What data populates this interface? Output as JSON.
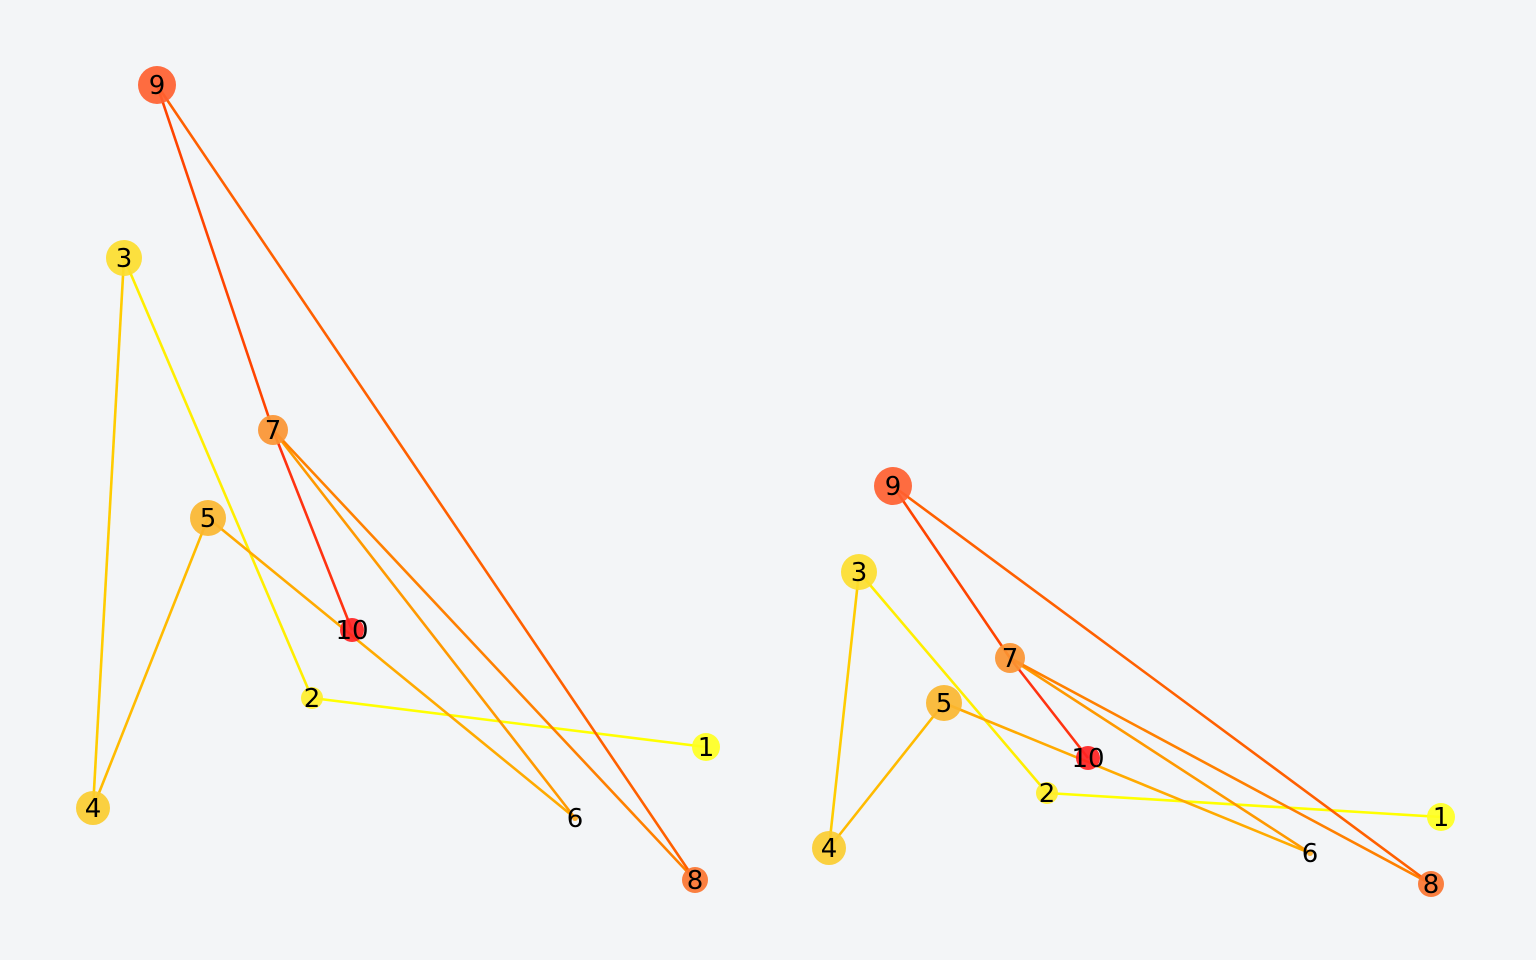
{
  "graphs": [
    {
      "nodes": [
        {
          "id": "1",
          "label": "1",
          "color": "#ffff22"
        },
        {
          "id": "2",
          "label": "2",
          "color": "#ffee2a"
        },
        {
          "id": "3",
          "label": "3",
          "color": "#fddd2e"
        },
        {
          "id": "4",
          "label": "4",
          "color": "#fbcc30"
        },
        {
          "id": "5",
          "label": "5",
          "color": "#fbb630"
        },
        {
          "id": "6",
          "label": "6",
          "color": "#ffaa22"
        },
        {
          "id": "7",
          "label": "7",
          "color": "#fb9432"
        },
        {
          "id": "8",
          "label": "8",
          "color": "#fb7430"
        },
        {
          "id": "9",
          "label": "9",
          "color": "#ff6030"
        },
        {
          "id": "10",
          "label": "10",
          "color": "#ff2222"
        }
      ],
      "edges": [
        {
          "source": "2",
          "target": "1",
          "color": "#ffff00"
        },
        {
          "source": "3",
          "target": "2",
          "color": "#ffee00"
        },
        {
          "source": "3",
          "target": "4",
          "color": "#ffcc00"
        },
        {
          "source": "5",
          "target": "4",
          "color": "#ffbb00"
        },
        {
          "source": "5",
          "target": "6",
          "color": "#ffaa00"
        },
        {
          "source": "7",
          "target": "6",
          "color": "#ff9900"
        },
        {
          "source": "7",
          "target": "8",
          "color": "#ff8000"
        },
        {
          "source": "9",
          "target": "8",
          "color": "#ff6000"
        },
        {
          "source": "9",
          "target": "7",
          "color": "#ff4400"
        },
        {
          "source": "7",
          "target": "10",
          "color": "#ff3311"
        }
      ]
    },
    {
      "nodes": [
        {
          "id": "1",
          "label": "1",
          "color": "#ffff22"
        },
        {
          "id": "2",
          "label": "2",
          "color": "#ffee2a"
        },
        {
          "id": "3",
          "label": "3",
          "color": "#fddd2e"
        },
        {
          "id": "4",
          "label": "4",
          "color": "#fbcc30"
        },
        {
          "id": "5",
          "label": "5",
          "color": "#fbb630"
        },
        {
          "id": "6",
          "label": "6",
          "color": "#ffaa22"
        },
        {
          "id": "7",
          "label": "7",
          "color": "#fb9432"
        },
        {
          "id": "8",
          "label": "8",
          "color": "#fb7430"
        },
        {
          "id": "9",
          "label": "9",
          "color": "#ff6030"
        },
        {
          "id": "10",
          "label": "10",
          "color": "#ff2222"
        }
      ],
      "edges": [
        {
          "source": "2",
          "target": "1",
          "color": "#ffff00"
        },
        {
          "source": "3",
          "target": "2",
          "color": "#ffee00"
        },
        {
          "source": "3",
          "target": "4",
          "color": "#ffcc00"
        },
        {
          "source": "5",
          "target": "4",
          "color": "#ffbb00"
        },
        {
          "source": "5",
          "target": "6",
          "color": "#ffaa00"
        },
        {
          "source": "7",
          "target": "6",
          "color": "#ff9900"
        },
        {
          "source": "7",
          "target": "8",
          "color": "#ff8000"
        },
        {
          "source": "9",
          "target": "8",
          "color": "#ff6000"
        },
        {
          "source": "9",
          "target": "7",
          "color": "#ff4400"
        },
        {
          "source": "7",
          "target": "10",
          "color": "#ff3311"
        }
      ]
    }
  ]
}
